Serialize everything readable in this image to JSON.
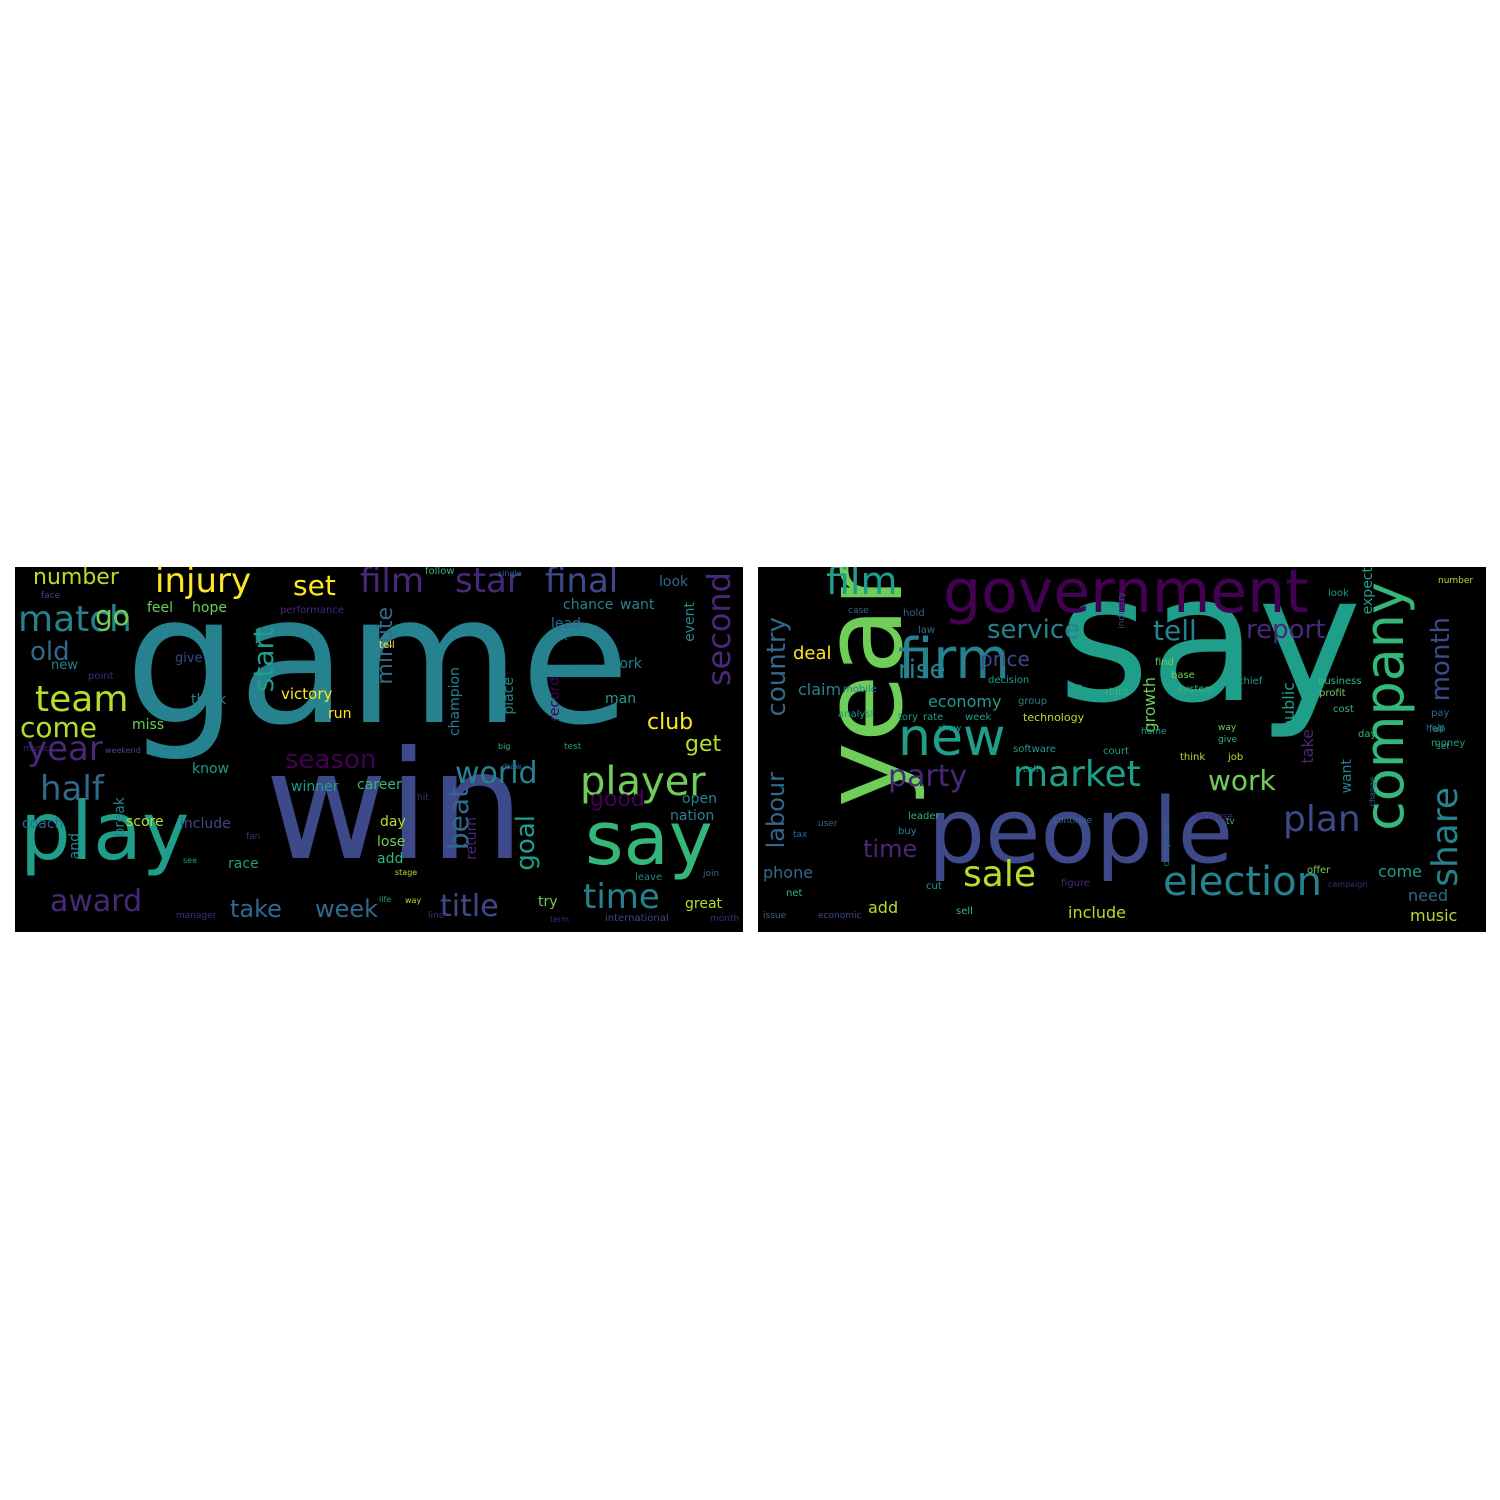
{
  "palette": [
    "#440154",
    "#482878",
    "#3e4989",
    "#31688e",
    "#26828e",
    "#1f9e89",
    "#35b779",
    "#6ece58",
    "#b5de2b",
    "#fde725"
  ],
  "clouds": [
    {
      "words": [
        {
          "text": "game",
          "size": 178,
          "c": 4,
          "v": 0
        },
        {
          "text": "win",
          "size": 150,
          "c": 2,
          "v": 0
        },
        {
          "text": "play",
          "size": 80,
          "c": 5,
          "v": 0
        },
        {
          "text": "say",
          "size": 74,
          "c": 6,
          "v": 0
        },
        {
          "text": "player",
          "size": 40,
          "c": 7,
          "v": 0
        },
        {
          "text": "match",
          "size": 36,
          "c": 4,
          "v": 0
        },
        {
          "text": "team",
          "size": 36,
          "c": 8,
          "v": 0
        },
        {
          "text": "injury",
          "size": 34,
          "c": 9,
          "v": 0
        },
        {
          "text": "film",
          "size": 34,
          "c": 1,
          "v": 0
        },
        {
          "text": "star",
          "size": 34,
          "c": 1,
          "v": 0
        },
        {
          "text": "final",
          "size": 34,
          "c": 2,
          "v": 0
        },
        {
          "text": "year",
          "size": 34,
          "c": 1,
          "v": 0
        },
        {
          "text": "half",
          "size": 34,
          "c": 3,
          "v": 0
        },
        {
          "text": "time",
          "size": 34,
          "c": 4,
          "v": 0
        },
        {
          "text": "award",
          "size": 30,
          "c": 1,
          "v": 0
        },
        {
          "text": "title",
          "size": 30,
          "c": 2,
          "v": 0
        },
        {
          "text": "world",
          "size": 30,
          "c": 4,
          "v": 0
        },
        {
          "text": "second",
          "size": 32,
          "c": 1,
          "v": 1
        },
        {
          "text": "come",
          "size": 28,
          "c": 8,
          "v": 0
        },
        {
          "text": "set",
          "size": 28,
          "c": 9,
          "v": 0
        },
        {
          "text": "go",
          "size": 28,
          "c": 7,
          "v": 0
        },
        {
          "text": "old",
          "size": 26,
          "c": 3,
          "v": 0
        },
        {
          "text": "season",
          "size": 26,
          "c": 0,
          "v": 0
        },
        {
          "text": "start",
          "size": 28,
          "c": 5,
          "v": 1
        },
        {
          "text": "beat",
          "size": 28,
          "c": 3,
          "v": 1
        },
        {
          "text": "goal",
          "size": 26,
          "c": 5,
          "v": 1
        },
        {
          "text": "take",
          "size": 24,
          "c": 3,
          "v": 0
        },
        {
          "text": "week",
          "size": 24,
          "c": 3,
          "v": 0
        },
        {
          "text": "number",
          "size": 22,
          "c": 8,
          "v": 0
        },
        {
          "text": "good",
          "size": 22,
          "c": 0,
          "v": 0
        },
        {
          "text": "club",
          "size": 22,
          "c": 9,
          "v": 0
        },
        {
          "text": "get",
          "size": 22,
          "c": 8,
          "v": 0
        },
        {
          "text": "minute",
          "size": 22,
          "c": 3,
          "v": 1
        },
        {
          "text": "victory",
          "size": 15,
          "c": 9,
          "v": 0
        },
        {
          "text": "chance",
          "size": 14,
          "c": 4,
          "v": 0
        },
        {
          "text": "want",
          "size": 14,
          "c": 4,
          "v": 0
        },
        {
          "text": "look",
          "size": 14,
          "c": 3,
          "v": 0
        },
        {
          "text": "feel",
          "size": 14,
          "c": 7,
          "v": 0
        },
        {
          "text": "hope",
          "size": 14,
          "c": 7,
          "v": 0
        },
        {
          "text": "lead",
          "size": 14,
          "c": 3,
          "v": 0
        },
        {
          "text": "work",
          "size": 14,
          "c": 4,
          "v": 0
        },
        {
          "text": "man",
          "size": 14,
          "c": 5,
          "v": 0
        },
        {
          "text": "think",
          "size": 14,
          "c": 4,
          "v": 0
        },
        {
          "text": "miss",
          "size": 14,
          "c": 7,
          "v": 0
        },
        {
          "text": "know",
          "size": 14,
          "c": 5,
          "v": 0
        },
        {
          "text": "run",
          "size": 14,
          "c": 9,
          "v": 0
        },
        {
          "text": "winner",
          "size": 14,
          "c": 5,
          "v": 0
        },
        {
          "text": "career",
          "size": 14,
          "c": 6,
          "v": 0
        },
        {
          "text": "include",
          "size": 14,
          "c": 2,
          "v": 0
        },
        {
          "text": "score",
          "size": 14,
          "c": 8,
          "v": 0
        },
        {
          "text": "coach",
          "size": 14,
          "c": 3,
          "v": 0
        },
        {
          "text": "day",
          "size": 14,
          "c": 8,
          "v": 0
        },
        {
          "text": "lose",
          "size": 14,
          "c": 7,
          "v": 0
        },
        {
          "text": "add",
          "size": 14,
          "c": 6,
          "v": 0
        },
        {
          "text": "race",
          "size": 14,
          "c": 5,
          "v": 0
        },
        {
          "text": "open",
          "size": 14,
          "c": 4,
          "v": 0
        },
        {
          "text": "nation",
          "size": 14,
          "c": 4,
          "v": 0
        },
        {
          "text": "great",
          "size": 14,
          "c": 8,
          "v": 0
        },
        {
          "text": "try",
          "size": 14,
          "c": 7,
          "v": 0
        },
        {
          "text": "give",
          "size": 13,
          "c": 2,
          "v": 0
        },
        {
          "text": "new",
          "size": 13,
          "c": 4,
          "v": 0
        },
        {
          "text": "point",
          "size": 10,
          "c": 1,
          "v": 0
        },
        {
          "text": "record",
          "size": 14,
          "c": 0,
          "v": 1
        },
        {
          "text": "place",
          "size": 14,
          "c": 4,
          "v": 1
        },
        {
          "text": "champion",
          "size": 14,
          "c": 4,
          "v": 1
        },
        {
          "text": "event",
          "size": 14,
          "c": 4,
          "v": 1
        },
        {
          "text": "break",
          "size": 14,
          "c": 4,
          "v": 1
        },
        {
          "text": "return",
          "size": 14,
          "c": 1,
          "v": 1
        },
        {
          "text": "and",
          "size": 14,
          "c": 4,
          "v": 1
        },
        {
          "text": "leave",
          "size": 10,
          "c": 4,
          "v": 0
        },
        {
          "text": "performance",
          "size": 10,
          "c": 1,
          "v": 0
        },
        {
          "text": "follow",
          "size": 10,
          "c": 6,
          "v": 0
        },
        {
          "text": "single",
          "size": 8,
          "c": 3,
          "v": 0
        },
        {
          "text": "tell",
          "size": 10,
          "c": 9,
          "v": 0
        },
        {
          "text": "lot",
          "size": 9,
          "c": 4,
          "v": 0
        },
        {
          "text": "test",
          "size": 9,
          "c": 5,
          "v": 0
        },
        {
          "text": "big",
          "size": 8,
          "c": 6,
          "v": 0
        },
        {
          "text": "face",
          "size": 9,
          "c": 2,
          "v": 0
        },
        {
          "text": "music",
          "size": 9,
          "c": 1,
          "v": 0
        },
        {
          "text": "manager",
          "size": 9,
          "c": 1,
          "v": 0
        },
        {
          "text": "line",
          "size": 9,
          "c": 1,
          "v": 0
        },
        {
          "text": "life",
          "size": 8,
          "c": 5,
          "v": 0
        },
        {
          "text": "stage",
          "size": 8,
          "c": 8,
          "v": 0
        },
        {
          "text": "international",
          "size": 10,
          "c": 2,
          "v": 0
        },
        {
          "text": "month",
          "size": 9,
          "c": 1,
          "v": 0
        },
        {
          "text": "join",
          "size": 9,
          "c": 3,
          "v": 0
        },
        {
          "text": "term",
          "size": 8,
          "c": 1,
          "v": 0
        },
        {
          "text": "way",
          "size": 8,
          "c": 8,
          "v": 0
        },
        {
          "text": "fan",
          "size": 9,
          "c": 1,
          "v": 0
        },
        {
          "text": "see",
          "size": 8,
          "c": 5,
          "v": 0
        },
        {
          "text": "weekend",
          "size": 8,
          "c": 2,
          "v": 0
        },
        {
          "text": "hit",
          "size": 9,
          "c": 1,
          "v": 0
        },
        {
          "text": "draw",
          "size": 8,
          "c": 3,
          "v": 0
        }
      ]
    },
    {
      "words": [
        {
          "text": "say",
          "size": 176,
          "c": 5,
          "v": 0
        },
        {
          "text": "year",
          "size": 110,
          "c": 7,
          "v": 1
        },
        {
          "text": "people",
          "size": 90,
          "c": 2,
          "v": 0
        },
        {
          "text": "government",
          "size": 60,
          "c": 0,
          "v": 0
        },
        {
          "text": "firm",
          "size": 56,
          "c": 4,
          "v": 0
        },
        {
          "text": "company",
          "size": 54,
          "c": 6,
          "v": 1
        },
        {
          "text": "new",
          "size": 52,
          "c": 5,
          "v": 0
        },
        {
          "text": "election",
          "size": 40,
          "c": 4,
          "v": 0
        },
        {
          "text": "film",
          "size": 38,
          "c": 5,
          "v": 0
        },
        {
          "text": "market",
          "size": 36,
          "c": 5,
          "v": 0
        },
        {
          "text": "plan",
          "size": 36,
          "c": 2,
          "v": 0
        },
        {
          "text": "share",
          "size": 36,
          "c": 4,
          "v": 1
        },
        {
          "text": "sale",
          "size": 36,
          "c": 8,
          "v": 0
        },
        {
          "text": "party",
          "size": 30,
          "c": 1,
          "v": 0
        },
        {
          "text": "work",
          "size": 28,
          "c": 7,
          "v": 0
        },
        {
          "text": "report",
          "size": 26,
          "c": 1,
          "v": 0
        },
        {
          "text": "tell",
          "size": 28,
          "c": 4,
          "v": 0
        },
        {
          "text": "service",
          "size": 26,
          "c": 4,
          "v": 0
        },
        {
          "text": "rise",
          "size": 26,
          "c": 4,
          "v": 0
        },
        {
          "text": "month",
          "size": 26,
          "c": 2,
          "v": 1
        },
        {
          "text": "country",
          "size": 26,
          "c": 3,
          "v": 1
        },
        {
          "text": "labour",
          "size": 24,
          "c": 3,
          "v": 1
        },
        {
          "text": "time",
          "size": 24,
          "c": 1,
          "v": 0
        },
        {
          "text": "price",
          "size": 20,
          "c": 2,
          "v": 0
        },
        {
          "text": "deal",
          "size": 18,
          "c": 9,
          "v": 0
        },
        {
          "text": "economy",
          "size": 16,
          "c": 5,
          "v": 0
        },
        {
          "text": "claim",
          "size": 16,
          "c": 4,
          "v": 0
        },
        {
          "text": "phone",
          "size": 16,
          "c": 3,
          "v": 0
        },
        {
          "text": "add",
          "size": 16,
          "c": 8,
          "v": 0
        },
        {
          "text": "include",
          "size": 16,
          "c": 8,
          "v": 0
        },
        {
          "text": "need",
          "size": 16,
          "c": 3,
          "v": 0
        },
        {
          "text": "music",
          "size": 16,
          "c": 8,
          "v": 0
        },
        {
          "text": "come",
          "size": 16,
          "c": 5,
          "v": 0
        },
        {
          "text": "growth",
          "size": 16,
          "c": 7,
          "v": 1
        },
        {
          "text": "public",
          "size": 16,
          "c": 5,
          "v": 1
        },
        {
          "text": "take",
          "size": 16,
          "c": 1,
          "v": 1
        },
        {
          "text": "want",
          "size": 14,
          "c": 4,
          "v": 1
        },
        {
          "text": "expect",
          "size": 14,
          "c": 5,
          "v": 1
        },
        {
          "text": "technology",
          "size": 11,
          "c": 8,
          "v": 0
        },
        {
          "text": "analyst",
          "size": 10,
          "c": 5,
          "v": 0
        },
        {
          "text": "tory",
          "size": 10,
          "c": 5,
          "v": 0
        },
        {
          "text": "rate",
          "size": 10,
          "c": 5,
          "v": 0
        },
        {
          "text": "week",
          "size": 10,
          "c": 5,
          "v": 0
        },
        {
          "text": "group",
          "size": 10,
          "c": 4,
          "v": 0
        },
        {
          "text": "software",
          "size": 10,
          "c": 5,
          "v": 0
        },
        {
          "text": "court",
          "size": 10,
          "c": 5,
          "v": 0
        },
        {
          "text": "think",
          "size": 10,
          "c": 8,
          "v": 0
        },
        {
          "text": "job",
          "size": 10,
          "c": 8,
          "v": 0
        },
        {
          "text": "offer",
          "size": 10,
          "c": 7,
          "v": 0
        },
        {
          "text": "system",
          "size": 10,
          "c": 6,
          "v": 0
        },
        {
          "text": "chief",
          "size": 10,
          "c": 5,
          "v": 0
        },
        {
          "text": "business",
          "size": 10,
          "c": 6,
          "v": 0
        },
        {
          "text": "profit",
          "size": 10,
          "c": 7,
          "v": 0
        },
        {
          "text": "cost",
          "size": 10,
          "c": 6,
          "v": 0
        },
        {
          "text": "day",
          "size": 10,
          "c": 6,
          "v": 0
        },
        {
          "text": "pay",
          "size": 10,
          "c": 3,
          "v": 0
        },
        {
          "text": "fall",
          "size": 10,
          "c": 5,
          "v": 0
        },
        {
          "text": "money",
          "size": 10,
          "c": 5,
          "v": 0
        },
        {
          "text": "help",
          "size": 9,
          "c": 3,
          "v": 0
        },
        {
          "text": "look",
          "size": 10,
          "c": 5,
          "v": 0
        },
        {
          "text": "number",
          "size": 9,
          "c": 8,
          "v": 0
        },
        {
          "text": "find",
          "size": 10,
          "c": 7,
          "v": 0
        },
        {
          "text": "base",
          "size": 10,
          "c": 7,
          "v": 0
        },
        {
          "text": "right",
          "size": 10,
          "c": 6,
          "v": 0
        },
        {
          "text": "go",
          "size": 10,
          "c": 5,
          "v": 0
        },
        {
          "text": "home",
          "size": 9,
          "c": 5,
          "v": 0
        },
        {
          "text": "give",
          "size": 9,
          "c": 6,
          "v": 0
        },
        {
          "text": "way",
          "size": 9,
          "c": 7,
          "v": 0
        },
        {
          "text": "tv",
          "size": 9,
          "c": 6,
          "v": 0
        },
        {
          "text": "increase",
          "size": 9,
          "c": 1,
          "v": 0
        },
        {
          "text": "computer",
          "size": 9,
          "c": 3,
          "v": 1
        },
        {
          "text": "figure",
          "size": 10,
          "c": 1,
          "v": 0
        },
        {
          "text": "campaign",
          "size": 8,
          "c": 1,
          "v": 0
        },
        {
          "text": "sell",
          "size": 10,
          "c": 6,
          "v": 0
        },
        {
          "text": "cut",
          "size": 10,
          "c": 5,
          "v": 0
        },
        {
          "text": "economic",
          "size": 9,
          "c": 2,
          "v": 0
        },
        {
          "text": "issue",
          "size": 9,
          "c": 3,
          "v": 0
        },
        {
          "text": "net",
          "size": 10,
          "c": 6,
          "v": 0
        },
        {
          "text": "user",
          "size": 9,
          "c": 3,
          "v": 0
        },
        {
          "text": "tax",
          "size": 9,
          "c": 3,
          "v": 0
        },
        {
          "text": "buy",
          "size": 10,
          "c": 4,
          "v": 0
        },
        {
          "text": "leader",
          "size": 10,
          "c": 6,
          "v": 0
        },
        {
          "text": "mobile",
          "size": 10,
          "c": 4,
          "v": 0
        },
        {
          "text": "law",
          "size": 10,
          "c": 3,
          "v": 0
        },
        {
          "text": "hold",
          "size": 10,
          "c": 3,
          "v": 0
        },
        {
          "text": "case",
          "size": 9,
          "c": 3,
          "v": 0
        },
        {
          "text": "decision",
          "size": 10,
          "c": 5,
          "v": 0
        },
        {
          "text": "call",
          "size": 9,
          "c": 5,
          "v": 0
        },
        {
          "text": "continue",
          "size": 9,
          "c": 3,
          "v": 0
        },
        {
          "text": "show",
          "size": 9,
          "c": 5,
          "v": 0
        },
        {
          "text": "industry",
          "size": 9,
          "c": 2,
          "v": 1
        },
        {
          "text": "change",
          "size": 8,
          "c": 3,
          "v": 1
        },
        {
          "text": "set",
          "size": 9,
          "c": 5,
          "v": 0
        }
      ]
    }
  ]
}
